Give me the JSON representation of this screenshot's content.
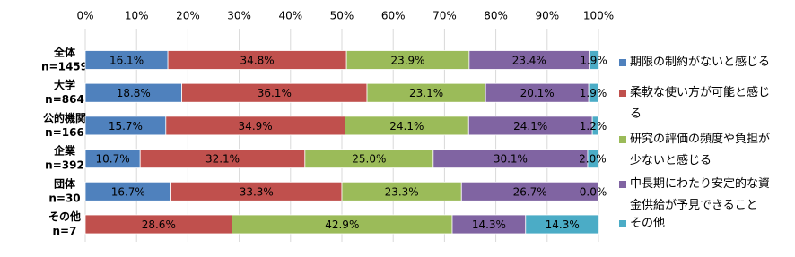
{
  "chart_data": {
    "type": "stacked_bar_horizontal",
    "categories": [
      "全体",
      "大学",
      "公的機関",
      "企業",
      "団体",
      "その他"
    ],
    "category_notes": [
      "n=1459",
      "n=864",
      "n=166",
      "n=392",
      "n=30",
      "n=7"
    ],
    "xlim": [
      0,
      100
    ],
    "xticks": [
      {
        "value": 0,
        "label": "0%"
      },
      {
        "value": 10,
        "label": "10%"
      },
      {
        "value": 20,
        "label": "20%"
      },
      {
        "value": 30,
        "label": "30%"
      },
      {
        "value": 40,
        "label": "40%"
      },
      {
        "value": 50,
        "label": "50%"
      },
      {
        "value": 60,
        "label": "60%"
      },
      {
        "value": 70,
        "label": "70%"
      },
      {
        "value": 80,
        "label": "80%"
      },
      {
        "value": 90,
        "label": "90%"
      },
      {
        "value": 100,
        "label": "100%"
      }
    ],
    "grid": true,
    "legend": "right",
    "series": [
      {
        "name": "期限の制約がないと感じる",
        "color": "#4f81bd",
        "values": [
          16.1,
          18.8,
          15.7,
          10.7,
          16.7,
          null
        ],
        "value_labels": [
          "16.1%",
          "18.8%",
          "15.7%",
          "10.7%",
          "16.7%",
          null
        ]
      },
      {
        "name": "柔軟な使い方が可能と感じる",
        "color": "#c0504d",
        "values": [
          34.8,
          36.1,
          34.9,
          32.1,
          33.3,
          28.6
        ],
        "value_labels": [
          "34.8%",
          "36.1%",
          "34.9%",
          "32.1%",
          "33.3%",
          "28.6%"
        ]
      },
      {
        "name": "研究の評価の頻度や負担が少ないと感じる",
        "color": "#9bbb59",
        "values": [
          23.9,
          23.1,
          24.1,
          25.0,
          23.3,
          42.9
        ],
        "value_labels": [
          "23.9%",
          "23.1%",
          "24.1%",
          "25.0%",
          "23.3%",
          "42.9%"
        ]
      },
      {
        "name": "中長期にわたり安定的な資金供給が予見できること",
        "color": "#8064a2",
        "values": [
          23.4,
          20.1,
          24.1,
          30.1,
          26.7,
          14.3
        ],
        "value_labels": [
          "23.4%",
          "20.1%",
          "24.1%",
          "30.1%",
          "26.7%",
          "14.3%"
        ]
      },
      {
        "name": "その他",
        "color": "#4bacc6",
        "values": [
          1.9,
          1.9,
          1.2,
          2.0,
          0.0,
          14.3
        ],
        "value_labels": [
          "1.9%",
          "1.9%",
          "1.2%",
          "2.0%",
          "0.0%",
          "14.3%"
        ]
      }
    ]
  }
}
